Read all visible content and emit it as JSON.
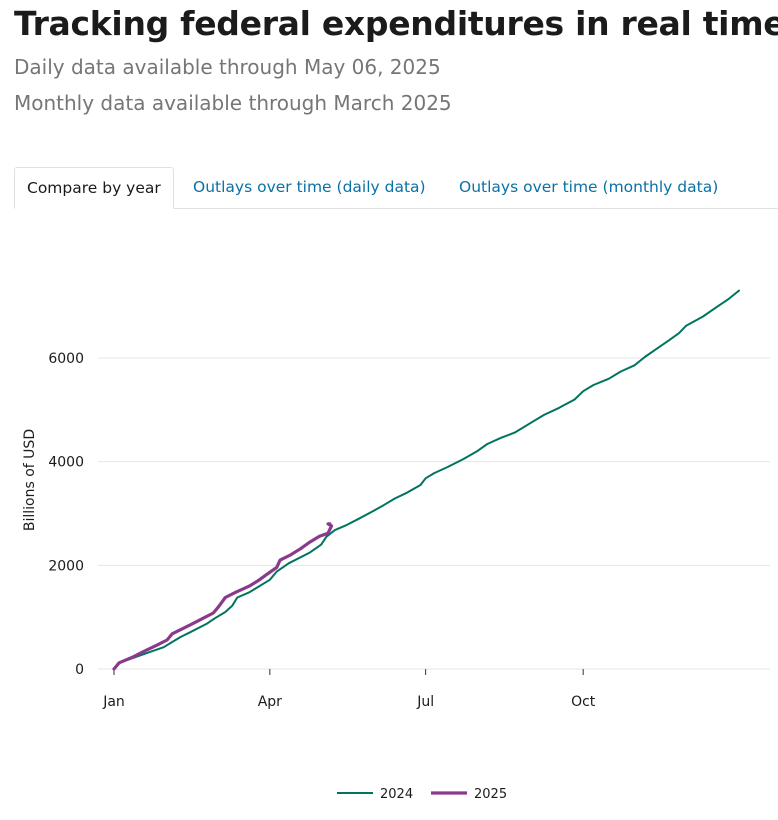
{
  "page": {
    "title": "Tracking federal expenditures in real time",
    "subtitle_daily": "Daily data available through May 06, 2025",
    "subtitle_monthly": "Monthly data available through March 2025"
  },
  "tabs": [
    {
      "label": "Compare by year",
      "active": true
    },
    {
      "label": "Outlays over time (daily data)",
      "active": false
    },
    {
      "label": "Outlays over time (monthly data)",
      "active": false
    }
  ],
  "colors": {
    "series_2024": "#00745f",
    "series_2025": "#8a3a8c",
    "grid": "#e6e6e6",
    "active_tab_text": "#1b1b1b",
    "tab_link": "#0b71a6"
  },
  "chart_data": {
    "type": "line",
    "ylabel": "Billions of USD",
    "xlabel": "",
    "x_unit": "day of year",
    "x_range": [
      1,
      366
    ],
    "ylim": [
      0,
      7400
    ],
    "y_ticks": [
      0,
      2000,
      4000,
      6000
    ],
    "x_ticks": [
      {
        "label": "Jan",
        "day": 1
      },
      {
        "label": "Apr",
        "day": 92
      },
      {
        "label": "Jul",
        "day": 183
      },
      {
        "label": "Oct",
        "day": 275
      }
    ],
    "grid": true,
    "legend_position": "bottom-center",
    "series": [
      {
        "name": "2024",
        "points": [
          [
            1,
            0
          ],
          [
            4,
            120
          ],
          [
            12,
            210
          ],
          [
            22,
            330
          ],
          [
            30,
            420
          ],
          [
            35,
            520
          ],
          [
            40,
            620
          ],
          [
            45,
            700
          ],
          [
            55,
            870
          ],
          [
            60,
            980
          ],
          [
            66,
            1100
          ],
          [
            70,
            1220
          ],
          [
            73,
            1380
          ],
          [
            80,
            1480
          ],
          [
            92,
            1720
          ],
          [
            96,
            1880
          ],
          [
            103,
            2040
          ],
          [
            115,
            2240
          ],
          [
            122,
            2400
          ],
          [
            125,
            2550
          ],
          [
            130,
            2680
          ],
          [
            137,
            2780
          ],
          [
            144,
            2900
          ],
          [
            152,
            3040
          ],
          [
            158,
            3150
          ],
          [
            165,
            3290
          ],
          [
            172,
            3400
          ],
          [
            180,
            3550
          ],
          [
            183,
            3680
          ],
          [
            188,
            3780
          ],
          [
            196,
            3900
          ],
          [
            205,
            4050
          ],
          [
            213,
            4200
          ],
          [
            219,
            4340
          ],
          [
            227,
            4460
          ],
          [
            235,
            4560
          ],
          [
            243,
            4720
          ],
          [
            252,
            4900
          ],
          [
            261,
            5040
          ],
          [
            270,
            5200
          ],
          [
            275,
            5360
          ],
          [
            281,
            5480
          ],
          [
            290,
            5600
          ],
          [
            297,
            5740
          ],
          [
            305,
            5860
          ],
          [
            311,
            6020
          ],
          [
            318,
            6180
          ],
          [
            325,
            6340
          ],
          [
            331,
            6480
          ],
          [
            335,
            6620
          ],
          [
            345,
            6800
          ],
          [
            352,
            6960
          ],
          [
            360,
            7140
          ],
          [
            366,
            7300
          ]
        ]
      },
      {
        "name": "2025",
        "points": [
          [
            1,
            0
          ],
          [
            4,
            120
          ],
          [
            12,
            230
          ],
          [
            19,
            350
          ],
          [
            26,
            460
          ],
          [
            32,
            560
          ],
          [
            35,
            680
          ],
          [
            40,
            760
          ],
          [
            46,
            860
          ],
          [
            52,
            960
          ],
          [
            59,
            1080
          ],
          [
            62,
            1200
          ],
          [
            66,
            1380
          ],
          [
            72,
            1480
          ],
          [
            80,
            1600
          ],
          [
            85,
            1700
          ],
          [
            90,
            1820
          ],
          [
            96,
            1960
          ],
          [
            98,
            2100
          ],
          [
            104,
            2200
          ],
          [
            110,
            2320
          ],
          [
            115,
            2440
          ],
          [
            121,
            2560
          ],
          [
            126,
            2620
          ],
          [
            128,
            2760
          ],
          [
            126,
            2800
          ],
          [
            127,
            2800
          ]
        ]
      }
    ]
  }
}
